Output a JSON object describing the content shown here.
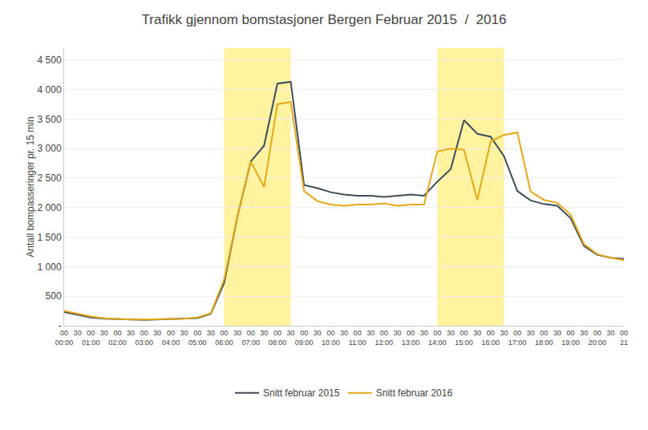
{
  "chart_data": {
    "type": "line",
    "title": "Trafikk gjennom bomstasjoner Bergen Februar 2015  /  2016",
    "y_label": "Antall bompasseringer pr. 15 min",
    "categories": [
      "00\n00:00",
      "30",
      "00\n01:00",
      "30",
      "00\n02:00",
      "30",
      "00\n03:00",
      "30",
      "00\n04:00",
      "30",
      "00\n05:00",
      "30",
      "00\n06:00",
      "30",
      "00\n07:00",
      "30",
      "00\n08:00",
      "30",
      "00\n09:00",
      "30",
      "00\n10:00",
      "30",
      "00\n11:00",
      "30",
      "00\n12:00",
      "30",
      "00\n13:00",
      "30",
      "00\n14:00",
      "30",
      "00\n15:00",
      "30",
      "00\n16:00",
      "30",
      "00\n17:00",
      "30",
      "00\n18:00",
      "30",
      "00\n19:00",
      "30",
      "00\n20:00",
      "30",
      "00\n21"
    ],
    "series": [
      {
        "name": "Snitt februar 2015",
        "color": "#3d4d5c",
        "values": [
          230,
          180,
          140,
          120,
          110,
          105,
          100,
          105,
          110,
          120,
          130,
          200,
          720,
          1850,
          2780,
          3050,
          4100,
          4130,
          2380,
          2330,
          2260,
          2220,
          2200,
          2200,
          2180,
          2200,
          2220,
          2200,
          2440,
          2650,
          3480,
          3250,
          3200,
          2870,
          2280,
          2120,
          2060,
          2030,
          1820,
          1350,
          1200,
          1150,
          1130
        ]
      },
      {
        "name": "Snitt februar 2016",
        "color": "#e6a817",
        "values": [
          250,
          200,
          155,
          125,
          110,
          105,
          105,
          110,
          115,
          120,
          140,
          210,
          780,
          1850,
          2780,
          2350,
          3750,
          3790,
          2280,
          2110,
          2050,
          2030,
          2050,
          2050,
          2070,
          2030,
          2050,
          2050,
          2950,
          3000,
          2980,
          2130,
          3120,
          3230,
          3270,
          2270,
          2130,
          2080,
          1880,
          1380,
          1210,
          1150,
          1110
        ]
      }
    ],
    "spans": [
      {
        "start": 12,
        "end": 17,
        "color": "#fff3a0"
      },
      {
        "start": 28,
        "end": 33,
        "color": "#fff3a0"
      }
    ],
    "ylim": [
      0,
      4700
    ],
    "yticks": [
      {
        "value": 0,
        "label": "-"
      },
      500,
      {
        "value": 1000,
        "label": "1 000"
      },
      {
        "value": 1500,
        "label": "1 500"
      },
      {
        "value": 2000,
        "label": "2 000"
      },
      {
        "value": 2500,
        "label": "2 500"
      },
      {
        "value": 3000,
        "label": "3 000"
      },
      {
        "value": 3500,
        "label": "3 500"
      },
      {
        "value": 4000,
        "label": "4 000"
      },
      {
        "value": 4500,
        "label": "4 500"
      }
    ],
    "grid": true,
    "legend": "bottom"
  }
}
